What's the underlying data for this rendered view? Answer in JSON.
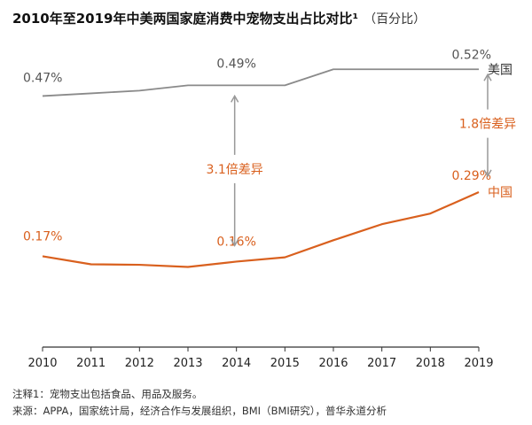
{
  "title": "2010年至2019年中美两国家庭消费中宠物支出占比对比¹",
  "title_unit": "（百分比）",
  "notes": [
    "注释1：宠物支出包括食品、用品及服务。",
    "来源：APPA，国家统计局，经济合作与发展组织，BMI（BMI研究），普华永道分析"
  ],
  "chart_data": {
    "type": "line",
    "x": [
      2010,
      2011,
      2012,
      2013,
      2014,
      2015,
      2016,
      2017,
      2018,
      2019
    ],
    "x_tick_labels": [
      "2010",
      "2011",
      "2012",
      "2013",
      "2014",
      "2015",
      "2016",
      "2017",
      "2018",
      "2019"
    ],
    "ylim": [
      0,
      0.6
    ],
    "grid": false,
    "series": [
      {
        "name": "美国",
        "color": "#8a8a8a",
        "values": [
          0.47,
          0.475,
          0.48,
          0.49,
          0.49,
          0.49,
          0.52,
          0.52,
          0.52,
          0.52
        ],
        "data_labels": [
          {
            "index": 0,
            "text": "0.47%"
          },
          {
            "index": 4,
            "text": "0.49%"
          },
          {
            "index": 9,
            "text": "0.52%"
          }
        ]
      },
      {
        "name": "中国",
        "color": "#d9601e",
        "values": [
          0.17,
          0.155,
          0.154,
          0.15,
          0.16,
          0.168,
          0.2,
          0.23,
          0.25,
          0.29
        ],
        "data_labels": [
          {
            "index": 0,
            "text": "0.17%"
          },
          {
            "index": 4,
            "text": "0.16%"
          },
          {
            "index": 9,
            "text": "0.29%"
          }
        ]
      }
    ],
    "annotations": [
      {
        "text": "3.1倍差异",
        "x": 2014,
        "from": 0.47,
        "to": 0.19,
        "color": "#d9601e"
      },
      {
        "text": "1.8倍差异",
        "x": 2019,
        "from": 0.51,
        "to": 0.32,
        "color": "#d9601e"
      }
    ]
  }
}
